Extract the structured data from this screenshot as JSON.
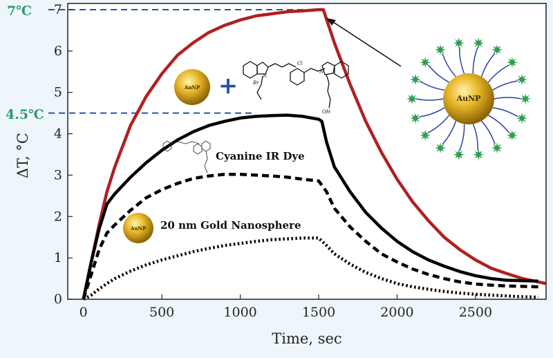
{
  "chart_data": {
    "type": "line",
    "xlabel": "Time, sec",
    "ylabel": "ΔT, °C",
    "xlim": [
      -100,
      2950
    ],
    "ylim": [
      0,
      7.15
    ],
    "xticks": [
      0,
      500,
      1000,
      1500,
      2000,
      2500
    ],
    "yticks": [
      0,
      1,
      2,
      3,
      4,
      5,
      6,
      7
    ],
    "grid": false,
    "series": [
      {
        "name": "",
        "style": "solid-thick",
        "color": "#b02020",
        "x": [
          0,
          50,
          100,
          150,
          200,
          300,
          400,
          500,
          600,
          700,
          800,
          900,
          1000,
          1100,
          1200,
          1300,
          1400,
          1500,
          1530,
          1600,
          1700,
          1800,
          1900,
          2000,
          2100,
          2200,
          2300,
          2400,
          2500,
          2600,
          2700,
          2800,
          2900,
          2950
        ],
        "y": [
          0,
          0.9,
          1.8,
          2.6,
          3.2,
          4.2,
          4.9,
          5.45,
          5.9,
          6.2,
          6.45,
          6.62,
          6.75,
          6.85,
          6.9,
          6.95,
          6.97,
          7.0,
          7.0,
          6.2,
          5.2,
          4.3,
          3.55,
          2.9,
          2.35,
          1.9,
          1.5,
          1.2,
          0.95,
          0.75,
          0.62,
          0.5,
          0.42,
          0.38
        ]
      },
      {
        "name": "Cyanine IR Dye",
        "style": "solid",
        "color": "#000000",
        "x": [
          0,
          50,
          100,
          150,
          200,
          300,
          400,
          500,
          600,
          700,
          800,
          900,
          1000,
          1100,
          1200,
          1300,
          1400,
          1500,
          1520,
          1550,
          1600,
          1700,
          1800,
          1900,
          2000,
          2100,
          2200,
          2300,
          2400,
          2500,
          2600,
          2700,
          2800,
          2900
        ],
        "y": [
          0,
          0.9,
          1.7,
          2.3,
          2.55,
          2.95,
          3.3,
          3.6,
          3.85,
          4.05,
          4.2,
          4.3,
          4.38,
          4.42,
          4.44,
          4.45,
          4.42,
          4.35,
          4.3,
          3.8,
          3.2,
          2.6,
          2.1,
          1.72,
          1.4,
          1.15,
          0.95,
          0.8,
          0.67,
          0.57,
          0.5,
          0.46,
          0.45,
          0.44
        ]
      },
      {
        "name": "",
        "style": "dashed",
        "color": "#000000",
        "x": [
          0,
          50,
          100,
          150,
          200,
          300,
          400,
          500,
          600,
          700,
          800,
          900,
          1000,
          1100,
          1200,
          1300,
          1400,
          1500,
          1550,
          1600,
          1700,
          1800,
          1900,
          2000,
          2100,
          2200,
          2300,
          2400,
          2500,
          2600,
          2700,
          2800,
          2900
        ],
        "y": [
          0,
          0.6,
          1.2,
          1.6,
          1.8,
          2.15,
          2.45,
          2.65,
          2.8,
          2.92,
          2.98,
          3.02,
          3.02,
          3.0,
          2.98,
          2.95,
          2.9,
          2.86,
          2.6,
          2.2,
          1.75,
          1.4,
          1.1,
          0.9,
          0.73,
          0.6,
          0.5,
          0.42,
          0.37,
          0.34,
          0.32,
          0.31,
          0.3
        ]
      },
      {
        "name": "20 nm Gold Nanosphere",
        "style": "dotted",
        "color": "#000000",
        "x": [
          0,
          50,
          100,
          150,
          200,
          300,
          400,
          500,
          600,
          700,
          800,
          900,
          1000,
          1100,
          1200,
          1300,
          1400,
          1500,
          1550,
          1600,
          1700,
          1800,
          1900,
          2000,
          2100,
          2200,
          2300,
          2400,
          2500,
          2600,
          2700,
          2800,
          2900
        ],
        "y": [
          0,
          0.1,
          0.25,
          0.38,
          0.5,
          0.68,
          0.83,
          0.95,
          1.05,
          1.15,
          1.23,
          1.3,
          1.35,
          1.4,
          1.44,
          1.46,
          1.48,
          1.48,
          1.3,
          1.1,
          0.85,
          0.65,
          0.5,
          0.38,
          0.3,
          0.24,
          0.19,
          0.15,
          0.12,
          0.1,
          0.08,
          0.06,
          0.05
        ]
      }
    ],
    "annotations": {
      "level_high": "7℃",
      "level_mid": "4.5℃",
      "np_core": "AuNP",
      "plus_sign": "+",
      "dye_bromide": "Br",
      "dye_chloro": "Cl",
      "dye_nitrogen": "N",
      "dye_acid": "OH"
    },
    "colors": {
      "gold_np_series": "#b02020",
      "guide_line": "#2a4fa8",
      "temperature_labels": "#2a9a6e",
      "nanoparticle": "#d4a017",
      "ligand_star": "#2e9e4e",
      "ligand_chain": "#2a3fa0",
      "background": "#eef6fb"
    }
  }
}
